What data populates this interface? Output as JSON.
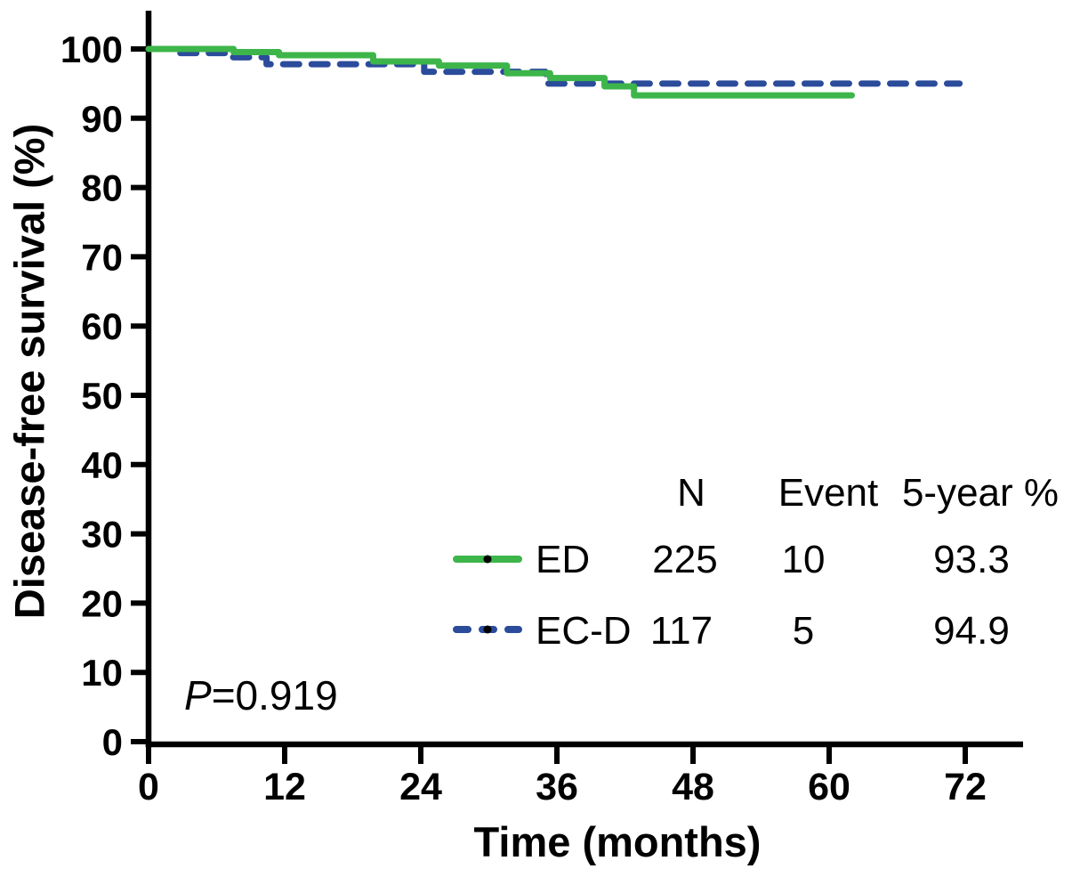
{
  "chart_data": {
    "type": "line",
    "subtype": "kaplan-meier-step",
    "title": "",
    "xlabel": "Time (months)",
    "ylabel": "Disease-free survival (%)",
    "xlim": [
      0,
      77
    ],
    "ylim": [
      0,
      105
    ],
    "x_ticks": [
      0,
      12,
      24,
      36,
      48,
      60,
      72
    ],
    "y_ticks": [
      0,
      10,
      20,
      30,
      40,
      50,
      60,
      70,
      80,
      90,
      100
    ],
    "grid": false,
    "legend_position": "inside lower right",
    "axis_color": "#000000",
    "series": [
      {
        "name": "EC-D",
        "color": "#2b4b9b",
        "style": "dashed",
        "n": 117,
        "events": 5,
        "five_year_percent": 94.9,
        "points": [
          [
            2.8,
            99.4
          ],
          [
            7.3,
            99.4
          ],
          [
            7.3,
            98.8
          ],
          [
            10.4,
            98.8
          ],
          [
            10.4,
            97.8
          ],
          [
            24.3,
            97.8
          ],
          [
            24.3,
            96.7
          ],
          [
            35,
            96.7
          ],
          [
            35,
            95.0
          ],
          [
            71.5,
            95.0
          ]
        ]
      },
      {
        "name": "ED",
        "color": "#3db54a",
        "style": "solid",
        "n": 225,
        "events": 10,
        "five_year_percent": 93.3,
        "points": [
          [
            0,
            100
          ],
          [
            7.5,
            100
          ],
          [
            7.5,
            99.55
          ],
          [
            11.5,
            99.55
          ],
          [
            11.5,
            99.1
          ],
          [
            19.8,
            99.1
          ],
          [
            19.8,
            98.2
          ],
          [
            25.6,
            98.2
          ],
          [
            25.6,
            97.6
          ],
          [
            31.6,
            97.6
          ],
          [
            31.6,
            96.5
          ],
          [
            35.4,
            96.5
          ],
          [
            35.4,
            95.8
          ],
          [
            40.2,
            95.8
          ],
          [
            40.2,
            94.6
          ],
          [
            42.8,
            94.6
          ],
          [
            42.8,
            93.3
          ],
          [
            62,
            93.3
          ]
        ]
      }
    ],
    "annotation": {
      "p_label": "P",
      "p_value": "=0.919"
    }
  },
  "legend": {
    "columns": [
      "N",
      "Event",
      "5-year %"
    ],
    "rows": [
      {
        "name": "ED",
        "n": "225",
        "event": "10",
        "five_year": "93.3"
      },
      {
        "name": "EC-D",
        "n": "117",
        "event": "5",
        "five_year": "94.9"
      }
    ]
  },
  "colors": {
    "ed_green": "#3db54a",
    "ecd_blue": "#2b4b9b",
    "axis_black": "#000000",
    "marker_dot": "#000000"
  }
}
